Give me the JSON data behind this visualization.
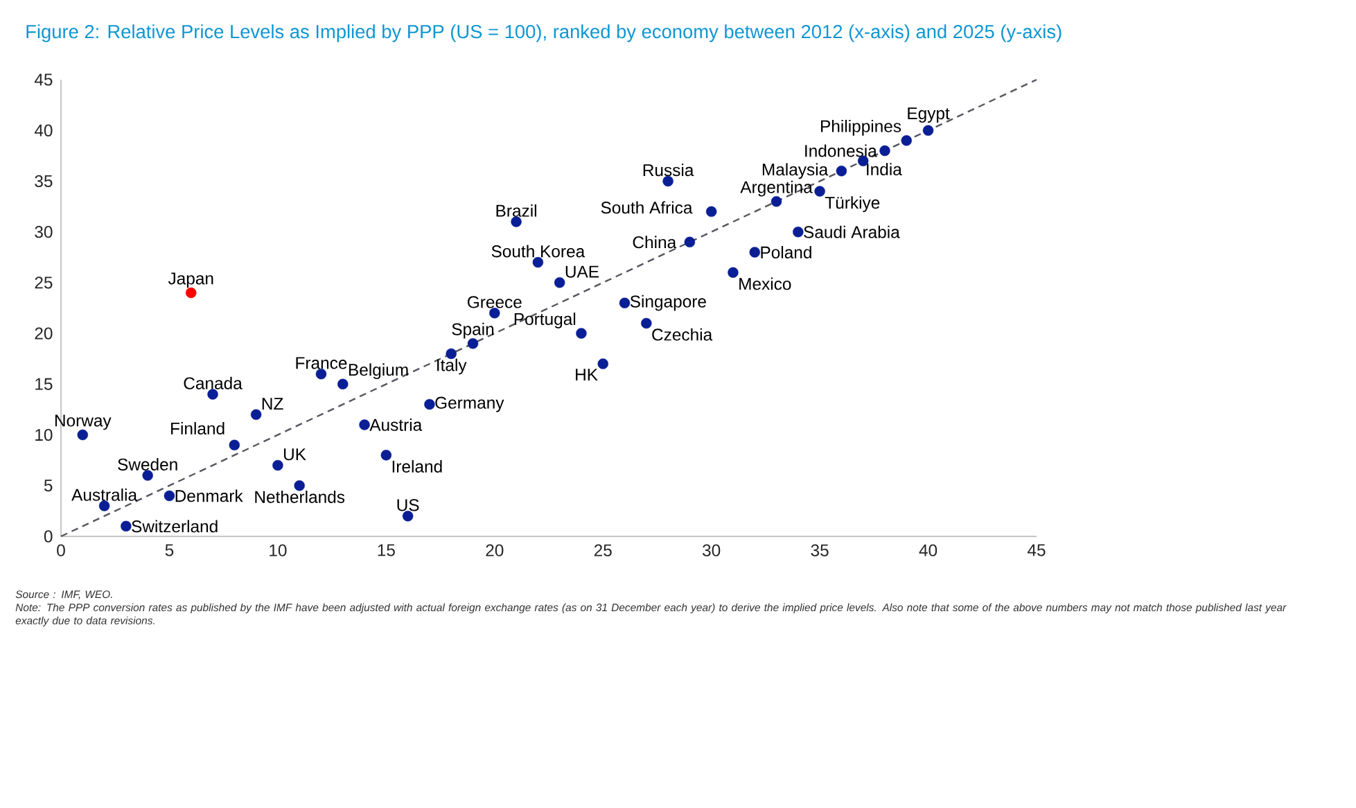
{
  "chart_data": {
    "type": "scatter",
    "title": "Figure 2: Relative Price Levels as Implied by PPP (US = 100), ranked by economy between 2012 (x-axis) and 2025 (y-axis)",
    "xlim": [
      0,
      45
    ],
    "ylim": [
      0,
      45
    ],
    "xticks": [
      0,
      5,
      10,
      15,
      20,
      25,
      30,
      35,
      40,
      45
    ],
    "yticks": [
      0,
      5,
      10,
      15,
      20,
      25,
      30,
      35,
      40,
      45
    ],
    "series": [
      {
        "marker": "circle",
        "x": [
          1,
          2,
          3,
          4,
          5,
          6,
          7,
          8,
          9,
          10,
          11,
          12,
          13,
          14,
          15,
          16,
          17,
          18,
          19,
          20,
          21,
          22,
          23,
          24,
          25,
          26,
          27,
          28,
          29,
          30,
          31,
          32,
          33,
          34,
          35,
          36,
          37,
          38,
          39,
          40
        ],
        "values": [
          10,
          3,
          1,
          6,
          4,
          24,
          14,
          9,
          12,
          7,
          5,
          16,
          15,
          11,
          8,
          2,
          13,
          18,
          19,
          22,
          31,
          27,
          25,
          20,
          17,
          23,
          21,
          35,
          29,
          32,
          26,
          28,
          33,
          30,
          34,
          36,
          37,
          38,
          39,
          40
        ],
        "colors": [
          "#0a1f96",
          "#0a1f96",
          "#0a1f96",
          "#0a1f96",
          "#0a1f96",
          "#ff0000",
          "#0a1f96",
          "#0a1f96",
          "#0a1f96",
          "#0a1f96",
          "#0a1f96",
          "#0a1f96",
          "#0a1f96",
          "#0a1f96",
          "#0a1f96",
          "#0a1f96",
          "#0a1f96",
          "#0a1f96",
          "#0a1f96",
          "#0a1f96",
          "#0a1f96",
          "#0a1f96",
          "#0a1f96",
          "#0a1f96",
          "#0a1f96",
          "#0a1f96",
          "#0a1f96",
          "#0a1f96",
          "#0a1f96",
          "#0a1f96",
          "#0a1f96",
          "#0a1f96",
          "#0a1f96",
          "#0a1f96",
          "#0a1f96",
          "#0a1f96",
          "#0a1f96",
          "#0a1f96",
          "#0a1f96",
          "#0a1f96"
        ]
      },
      {
        "type": "line",
        "marker": "none",
        "line_style": "dashed",
        "color": "#55555f",
        "x": [
          0,
          45
        ],
        "values": [
          0,
          45
        ]
      }
    ],
    "annotations": [
      "Source : IMF, WEO.",
      "Note: The PPP conversion rates as published by the IMF have been adjusted with actual foreign exchange rates (as on 31 December each year) to derive the implied price levels. Also note that some of the above numbers may not match those published last year exactly due to data revisions.",
      {
        "text": "Norway",
        "x": 1,
        "y": 10
      },
      {
        "text": "Australia",
        "x": 2,
        "y": 3
      },
      {
        "text": "Switzerland",
        "x": 3,
        "y": 1
      },
      {
        "text": "Sweden",
        "x": 4,
        "y": 6
      },
      {
        "text": "Denmark",
        "x": 5,
        "y": 4
      },
      {
        "text": "Japan",
        "x": 6,
        "y": 24
      },
      {
        "text": "Canada",
        "x": 7,
        "y": 14
      },
      {
        "text": "Finland",
        "x": 8,
        "y": 9
      },
      {
        "text": "NZ",
        "x": 9,
        "y": 12
      },
      {
        "text": "UK",
        "x": 10,
        "y": 7
      },
      {
        "text": "Netherlands",
        "x": 11,
        "y": 5
      },
      {
        "text": "France",
        "x": 12,
        "y": 16
      },
      {
        "text": "Belgium",
        "x": 13,
        "y": 15
      },
      {
        "text": "Austria",
        "x": 14,
        "y": 11
      },
      {
        "text": "Ireland",
        "x": 15,
        "y": 8
      },
      {
        "text": "US",
        "x": 16,
        "y": 2
      },
      {
        "text": "Germany",
        "x": 17,
        "y": 13
      },
      {
        "text": "Italy",
        "x": 18,
        "y": 18
      },
      {
        "text": "Spain",
        "x": 19,
        "y": 19
      },
      {
        "text": "Greece",
        "x": 20,
        "y": 22
      },
      {
        "text": "Brazil",
        "x": 21,
        "y": 31
      },
      {
        "text": "South Korea",
        "x": 22,
        "y": 27
      },
      {
        "text": "UAE",
        "x": 23,
        "y": 25
      },
      {
        "text": "Portugal",
        "x": 24,
        "y": 20
      },
      {
        "text": "HK",
        "x": 25,
        "y": 17
      },
      {
        "text": "Singapore",
        "x": 26,
        "y": 23
      },
      {
        "text": "Czechia",
        "x": 27,
        "y": 21
      },
      {
        "text": "Russia",
        "x": 28,
        "y": 35
      },
      {
        "text": "China",
        "x": 29,
        "y": 29
      },
      {
        "text": "South Africa",
        "x": 30,
        "y": 32
      },
      {
        "text": "Mexico",
        "x": 31,
        "y": 26
      },
      {
        "text": "Poland",
        "x": 32,
        "y": 28
      },
      {
        "text": "Argentina",
        "x": 33,
        "y": 33
      },
      {
        "text": "Saudi Arabia",
        "x": 34,
        "y": 30
      },
      {
        "text": "Türkiye",
        "x": 35,
        "y": 34
      },
      {
        "text": "Malaysia",
        "x": 36,
        "y": 36
      },
      {
        "text": "India",
        "x": 37,
        "y": 37
      },
      {
        "text": "Indonesia",
        "x": 38,
        "y": 38
      },
      {
        "text": "Philippines",
        "x": 39,
        "y": 39
      },
      {
        "text": "Egypt",
        "x": 40,
        "y": 40
      }
    ]
  }
}
